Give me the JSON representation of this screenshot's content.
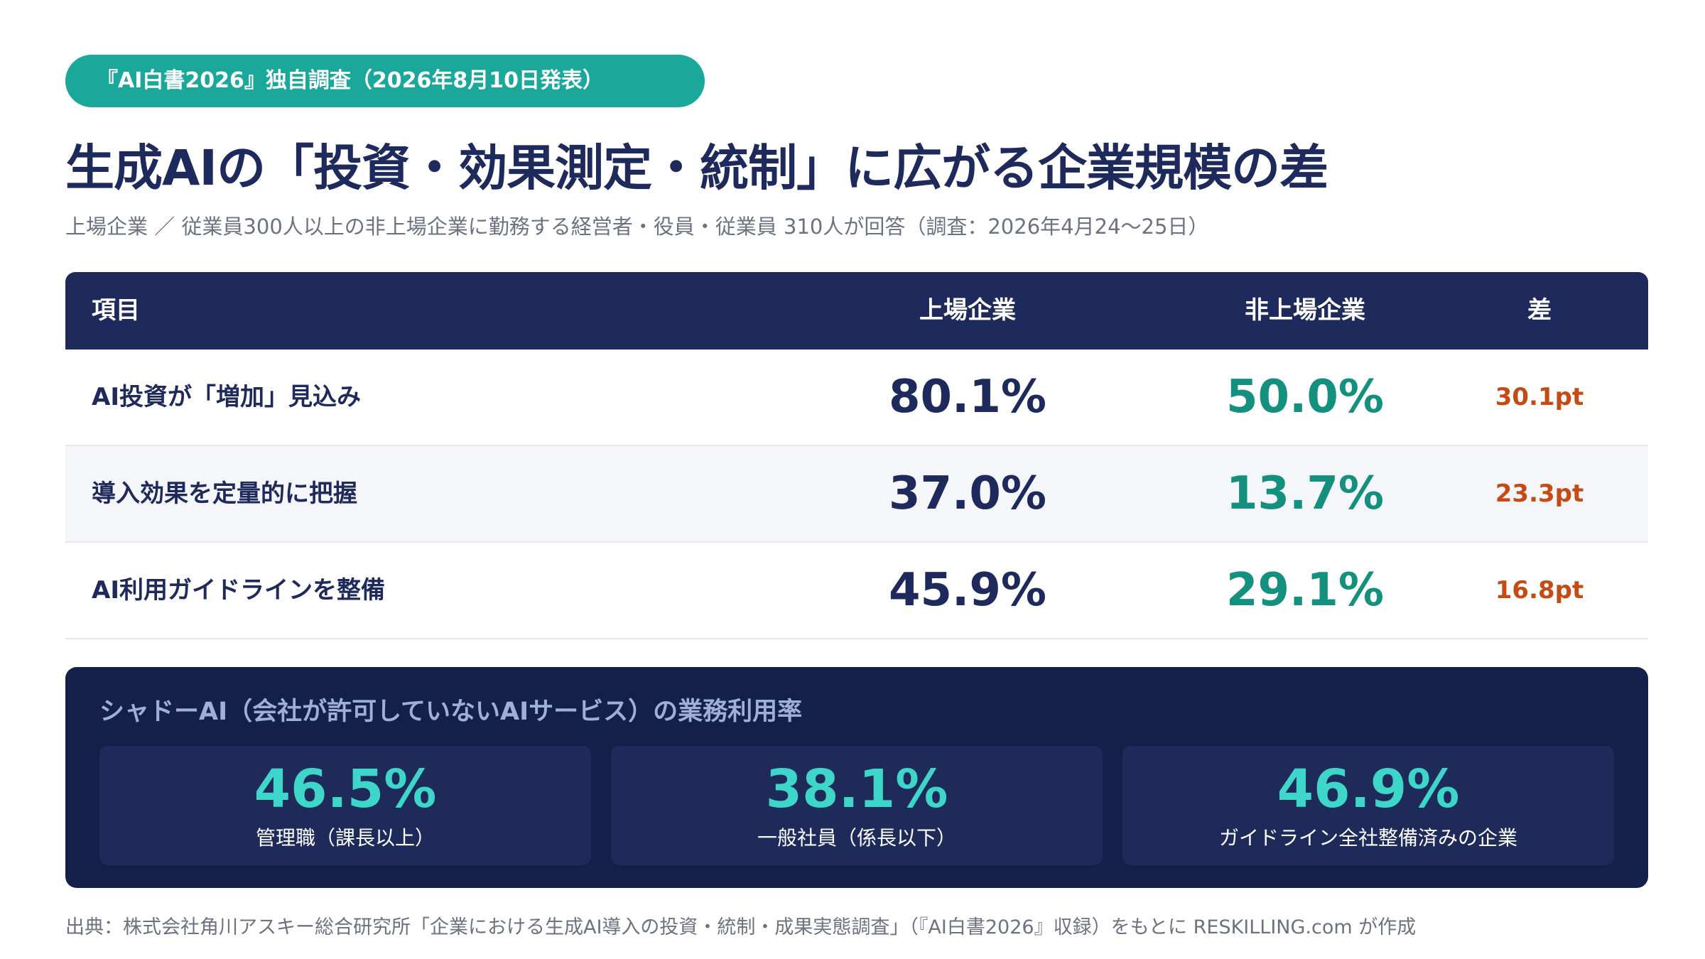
{
  "badge": "『AI白書2026』独自調査（2026年8月10日発表）",
  "title": "生成AIの「投資・効果測定・統制」に広がる企業規模の差",
  "subtitle": "上場企業 ／ 従業員300人以上の非上場企業に勤務する経営者・役員・従業員 310人が回答（調査：2026年4月24〜25日）",
  "table": {
    "headers": {
      "item": "項目",
      "listed": "上場企業",
      "unlisted": "非上場企業",
      "diff": "差"
    },
    "rows": [
      {
        "label": "AI投資が「増加」見込み",
        "listed": "80.1%",
        "unlisted": "50.0%",
        "diff": "30.1pt"
      },
      {
        "label": "導入効果を定量的に把握",
        "listed": "37.0%",
        "unlisted": "13.7%",
        "diff": "23.3pt"
      },
      {
        "label": "AI利用ガイドラインを整備",
        "listed": "45.9%",
        "unlisted": "29.1%",
        "diff": "16.8pt"
      }
    ]
  },
  "shadow_ai": {
    "title": "シャドーAI（会社が許可していないAIサービス）の業務利用率",
    "stats": [
      {
        "value": "46.5%",
        "label": "管理職（課長以上）"
      },
      {
        "value": "38.1%",
        "label": "一般社員（係長以下）"
      },
      {
        "value": "46.9%",
        "label": "ガイドライン全社整備済みの企業"
      }
    ]
  },
  "source": "出典：株式会社角川アスキー総合研究所「企業における生成AI導入の投資・統制・成果実態調査」（『AI白書2026』収録）をもとに RESKILLING.com が作成",
  "colors": {
    "navy": "#1f2a5c",
    "teal": "#13917e",
    "badge": "#1aa89a",
    "diff": "#c44b14",
    "panel": "#13204a",
    "stat_value": "#3dd6c8"
  }
}
